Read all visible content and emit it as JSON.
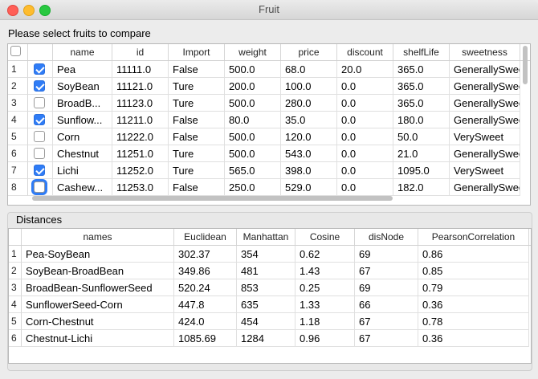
{
  "window": {
    "title": "Fruit"
  },
  "fruits_section": {
    "label": "Please select fruits to compare",
    "columns": [
      "name",
      "id",
      "Import",
      "weight",
      "price",
      "discount",
      "shelfLife",
      "sweetness"
    ],
    "rows": [
      {
        "num": "1",
        "checked": true,
        "name": "Pea",
        "id": "11111.0",
        "import": "False",
        "weight": "500.0",
        "price": "68.0",
        "discount": "20.0",
        "shelfLife": "365.0",
        "sweetness": "GenerallySwee"
      },
      {
        "num": "2",
        "checked": true,
        "name": "SoyBean",
        "id": "11121.0",
        "import": "Ture",
        "weight": "200.0",
        "price": "100.0",
        "discount": "0.0",
        "shelfLife": "365.0",
        "sweetness": "GenerallySwee"
      },
      {
        "num": "3",
        "checked": false,
        "name": "BroadB...",
        "id": "11123.0",
        "import": "Ture",
        "weight": "500.0",
        "price": "280.0",
        "discount": "0.0",
        "shelfLife": "365.0",
        "sweetness": "GenerallySwee"
      },
      {
        "num": "4",
        "checked": true,
        "name": "Sunflow...",
        "id": "11211.0",
        "import": "False",
        "weight": "80.0",
        "price": "35.0",
        "discount": "0.0",
        "shelfLife": "180.0",
        "sweetness": "GenerallySwee"
      },
      {
        "num": "5",
        "checked": false,
        "name": "Corn",
        "id": "11222.0",
        "import": "False",
        "weight": "500.0",
        "price": "120.0",
        "discount": "0.0",
        "shelfLife": "50.0",
        "sweetness": "VerySweet"
      },
      {
        "num": "6",
        "checked": false,
        "name": "Chestnut",
        "id": "11251.0",
        "import": "Ture",
        "weight": "500.0",
        "price": "543.0",
        "discount": "0.0",
        "shelfLife": "21.0",
        "sweetness": "GenerallySwee"
      },
      {
        "num": "7",
        "checked": true,
        "name": "Lichi",
        "id": "11252.0",
        "import": "Ture",
        "weight": "565.0",
        "price": "398.0",
        "discount": "0.0",
        "shelfLife": "1095.0",
        "sweetness": "VerySweet"
      },
      {
        "num": "8",
        "checked": false,
        "name": "Cashew...",
        "id": "11253.0",
        "import": "False",
        "weight": "250.0",
        "price": "529.0",
        "discount": "0.0",
        "shelfLife": "182.0",
        "sweetness": "GenerallySwee"
      }
    ]
  },
  "distances_section": {
    "label": "Distances",
    "columns": [
      "names",
      "Euclidean",
      "Manhattan",
      "Cosine",
      "disNode",
      "PearsonCorrelation"
    ],
    "rows": [
      {
        "num": "1",
        "names": "Pea-SoyBean",
        "euclidean": "302.37",
        "manhattan": "354",
        "cosine": "0.62",
        "disNode": "69",
        "pearson": "0.86"
      },
      {
        "num": "2",
        "names": "SoyBean-BroadBean",
        "euclidean": "349.86",
        "manhattan": "481",
        "cosine": "1.43",
        "disNode": "67",
        "pearson": "0.85"
      },
      {
        "num": "3",
        "names": "BroadBean-SunflowerSeed",
        "euclidean": "520.24",
        "manhattan": "853",
        "cosine": "0.25",
        "disNode": "69",
        "pearson": "0.79"
      },
      {
        "num": "4",
        "names": "SunflowerSeed-Corn",
        "euclidean": "447.8",
        "manhattan": "635",
        "cosine": "1.33",
        "disNode": "66",
        "pearson": "0.36"
      },
      {
        "num": "5",
        "names": "Corn-Chestnut",
        "euclidean": "424.0",
        "manhattan": "454",
        "cosine": "1.18",
        "disNode": "67",
        "pearson": "0.78"
      },
      {
        "num": "6",
        "names": "Chestnut-Lichi",
        "euclidean": "1085.69",
        "manhattan": "1284",
        "cosine": "0.96",
        "disNode": "67",
        "pearson": "0.36"
      }
    ]
  },
  "colors": {
    "accent": "#2f7cf6"
  }
}
